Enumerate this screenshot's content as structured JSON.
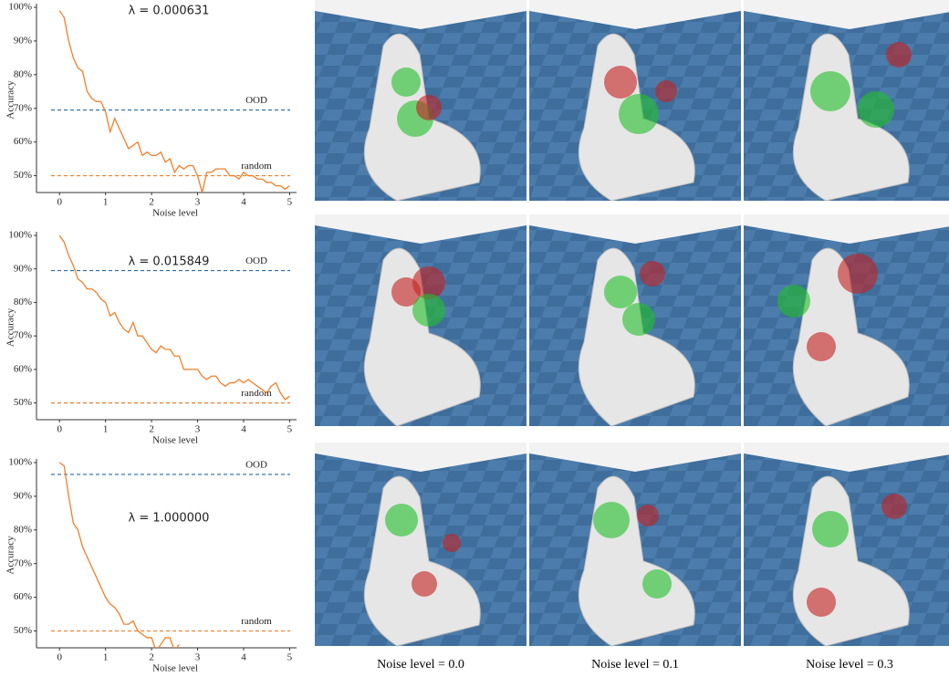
{
  "chart_data": [
    {
      "type": "line",
      "annotation": "λ = 0.000631",
      "xlabel": "Noise level",
      "ylabel": "Accuracy",
      "xlim": [
        -0.5,
        5.15
      ],
      "ylim": [
        45,
        100
      ],
      "xticks": [
        0,
        1,
        2,
        3,
        4,
        5
      ],
      "yticks": [
        {
          "value": 50,
          "label": "50%"
        },
        {
          "value": 60,
          "label": "60%"
        },
        {
          "value": 70,
          "label": "70%"
        },
        {
          "value": 80,
          "label": "80%"
        },
        {
          "value": 90,
          "label": "90%"
        },
        {
          "value": 100,
          "label": "100%"
        }
      ],
      "x": [
        0,
        0.1,
        0.2,
        0.3,
        0.4,
        0.5,
        0.6,
        0.7,
        0.8,
        0.9,
        1,
        1.1,
        1.2,
        1.3,
        1.4,
        1.5,
        1.6,
        1.7,
        1.8,
        1.9,
        2,
        2.1,
        2.2,
        2.3,
        2.4,
        2.5,
        2.6,
        2.7,
        2.8,
        2.9,
        3,
        3.1,
        3.2,
        3.3,
        3.4,
        3.5,
        3.6,
        3.7,
        3.8,
        3.9,
        4,
        4.1,
        4.2,
        4.3,
        4.4,
        4.5,
        4.6,
        4.7,
        4.8,
        4.9,
        5
      ],
      "series": [
        {
          "color": "#f07f2a",
          "values": [
            99,
            97,
            90,
            85,
            82,
            81,
            75,
            73,
            72,
            72,
            69,
            63,
            67,
            64,
            61,
            58,
            59,
            60,
            56,
            57,
            56,
            56,
            57,
            54,
            55,
            51,
            53,
            52,
            53,
            53,
            50,
            45,
            51,
            51,
            52,
            52,
            52,
            50,
            50,
            49,
            51,
            50,
            50,
            49,
            49,
            48,
            48,
            47,
            47,
            46,
            47
          ]
        }
      ],
      "reference_lines": [
        {
          "name": "OOD",
          "value": 69.5,
          "color": "#2a6aa6"
        },
        {
          "name": "random",
          "value": 50,
          "color": "#f07f2a"
        }
      ]
    },
    {
      "type": "line",
      "annotation": "λ = 0.015849",
      "xlabel": "Noise level",
      "ylabel": "Accuracy",
      "xlim": [
        -0.5,
        5.15
      ],
      "ylim": [
        45,
        100
      ],
      "xticks": [
        0,
        1,
        2,
        3,
        4,
        5
      ],
      "yticks": [
        {
          "value": 50,
          "label": "50%"
        },
        {
          "value": 60,
          "label": "60%"
        },
        {
          "value": 70,
          "label": "70%"
        },
        {
          "value": 80,
          "label": "80%"
        },
        {
          "value": 90,
          "label": "90%"
        },
        {
          "value": 100,
          "label": "100%"
        }
      ],
      "x": [
        0,
        0.1,
        0.2,
        0.3,
        0.4,
        0.5,
        0.6,
        0.7,
        0.8,
        0.9,
        1,
        1.1,
        1.2,
        1.3,
        1.4,
        1.5,
        1.6,
        1.7,
        1.8,
        1.9,
        2,
        2.1,
        2.2,
        2.3,
        2.4,
        2.5,
        2.6,
        2.7,
        2.8,
        2.9,
        3,
        3.1,
        3.2,
        3.3,
        3.4,
        3.5,
        3.6,
        3.7,
        3.8,
        3.9,
        4,
        4.1,
        4.2,
        4.3,
        4.4,
        4.5,
        4.6,
        4.7,
        4.8,
        4.9,
        5
      ],
      "series": [
        {
          "color": "#f07f2a",
          "values": [
            100,
            98,
            94,
            91,
            87,
            86,
            84,
            84,
            83,
            81,
            80,
            76,
            77,
            74,
            72,
            71,
            74,
            70,
            70,
            68,
            66,
            65,
            67,
            66,
            66,
            64,
            64,
            60,
            60,
            60,
            60,
            58,
            57,
            58,
            58,
            56,
            55,
            56,
            56,
            57,
            56,
            57,
            56,
            55,
            54,
            53,
            55,
            56,
            53,
            51,
            52
          ]
        }
      ],
      "reference_lines": [
        {
          "name": "OOD",
          "value": 89.5,
          "color": "#2a6aa6"
        },
        {
          "name": "random",
          "value": 50,
          "color": "#f07f2a"
        }
      ]
    },
    {
      "type": "line",
      "annotation": "λ = 1.000000",
      "xlabel": "Noise level",
      "ylabel": "Accuracy",
      "xlim": [
        -0.5,
        5.15
      ],
      "ylim": [
        45,
        100
      ],
      "xticks": [
        0,
        1,
        2,
        3,
        4,
        5
      ],
      "yticks": [
        {
          "value": 50,
          "label": "50%"
        },
        {
          "value": 60,
          "label": "60%"
        },
        {
          "value": 70,
          "label": "70%"
        },
        {
          "value": 80,
          "label": "80%"
        },
        {
          "value": 90,
          "label": "90%"
        },
        {
          "value": 100,
          "label": "100%"
        }
      ],
      "x": [
        0,
        0.1,
        0.2,
        0.3,
        0.4,
        0.5,
        0.6,
        0.7,
        0.8,
        0.9,
        1,
        1.1,
        1.2,
        1.3,
        1.4,
        1.5,
        1.6,
        1.7,
        1.8,
        1.9,
        2,
        2.1,
        2.2,
        2.3,
        2.4,
        2.5,
        2.6,
        2.7,
        2.8,
        2.9,
        3,
        3.1,
        3.2,
        3.3,
        3.4,
        3.5,
        3.6,
        3.7,
        3.8,
        3.9,
        4,
        4.1,
        4.2,
        4.3,
        4.4,
        4.5,
        4.6,
        4.7,
        4.8,
        4.9,
        5
      ],
      "series": [
        {
          "color": "#f07f2a",
          "values": [
            100,
            99,
            90,
            82,
            80,
            75,
            72,
            69,
            66,
            63,
            60,
            58,
            57,
            55,
            52,
            52,
            53,
            50,
            49,
            48,
            48,
            44,
            46,
            48,
            48,
            44,
            46,
            null,
            null,
            null,
            null,
            null,
            null,
            null,
            null,
            null,
            null,
            null,
            null,
            null,
            null,
            null,
            null,
            null,
            null,
            null,
            null,
            null,
            null,
            null,
            null
          ]
        }
      ],
      "reference_lines": [
        {
          "name": "OOD",
          "value": 96.5,
          "color": "#2a6aa6"
        },
        {
          "name": "random",
          "value": 50,
          "color": "#f07f2a"
        }
      ]
    }
  ],
  "panels": {
    "captions": [
      "Noise level = 0.0",
      "Noise level = 0.1",
      "Noise level = 0.3"
    ]
  }
}
